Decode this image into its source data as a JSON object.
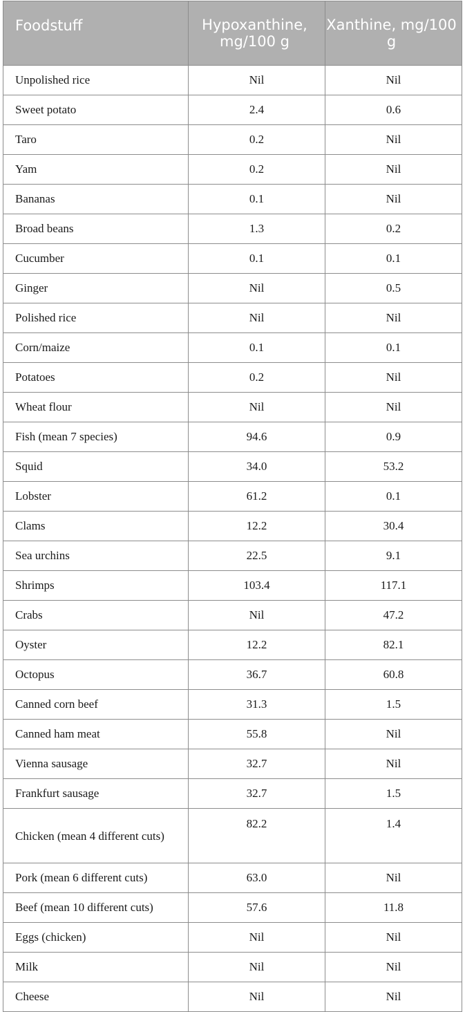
{
  "table": {
    "headers": [
      "Foodstuff",
      "Hypoxanthine, mg/100 g",
      "Xanthine, mg/100 g"
    ],
    "rows": [
      [
        "Unpolished rice",
        "Nil",
        "Nil"
      ],
      [
        "Sweet potato",
        "2.4",
        "0.6"
      ],
      [
        "Taro",
        "0.2",
        "Nil"
      ],
      [
        "Yam",
        "0.2",
        "Nil"
      ],
      [
        "Bananas",
        "0.1",
        "Nil"
      ],
      [
        "Broad beans",
        "1.3",
        "0.2"
      ],
      [
        "Cucumber",
        "0.1",
        "0.1"
      ],
      [
        "Ginger",
        "Nil",
        "0.5"
      ],
      [
        "Polished rice",
        "Nil",
        "Nil"
      ],
      [
        "Corn/maize",
        "0.1",
        "0.1"
      ],
      [
        "Potatoes",
        "0.2",
        "Nil"
      ],
      [
        "Wheat flour",
        "Nil",
        "Nil"
      ],
      [
        "Fish (mean 7 species)",
        "94.6",
        "0.9"
      ],
      [
        "Squid",
        "34.0",
        "53.2"
      ],
      [
        "Lobster",
        "61.2",
        "0.1"
      ],
      [
        "Clams",
        "12.2",
        "30.4"
      ],
      [
        "Sea urchins",
        "22.5",
        "9.1"
      ],
      [
        "Shrimps",
        "103.4",
        "117.1"
      ],
      [
        "Crabs",
        "Nil",
        "47.2"
      ],
      [
        "Oyster",
        "12.2",
        "82.1"
      ],
      [
        "Octopus",
        "36.7",
        "60.8"
      ],
      [
        "Canned corn beef",
        "31.3",
        "1.5"
      ],
      [
        "Canned ham meat",
        "55.8",
        "Nil"
      ],
      [
        "Vienna sausage",
        "32.7",
        "Nil"
      ],
      [
        "Frankfurt sausage",
        "32.7",
        "1.5"
      ],
      [
        "Chicken (mean 4 different cuts)",
        "82.2",
        "1.4"
      ],
      [
        "Pork (mean 6 different cuts)",
        "63.0",
        "Nil"
      ],
      [
        "Beef (mean 10 different cuts)",
        "57.6",
        "11.8"
      ],
      [
        "Eggs (chicken)",
        "Nil",
        "Nil"
      ],
      [
        "Milk",
        "Nil",
        "Nil"
      ],
      [
        "Cheese",
        "Nil",
        "Nil"
      ]
    ]
  }
}
